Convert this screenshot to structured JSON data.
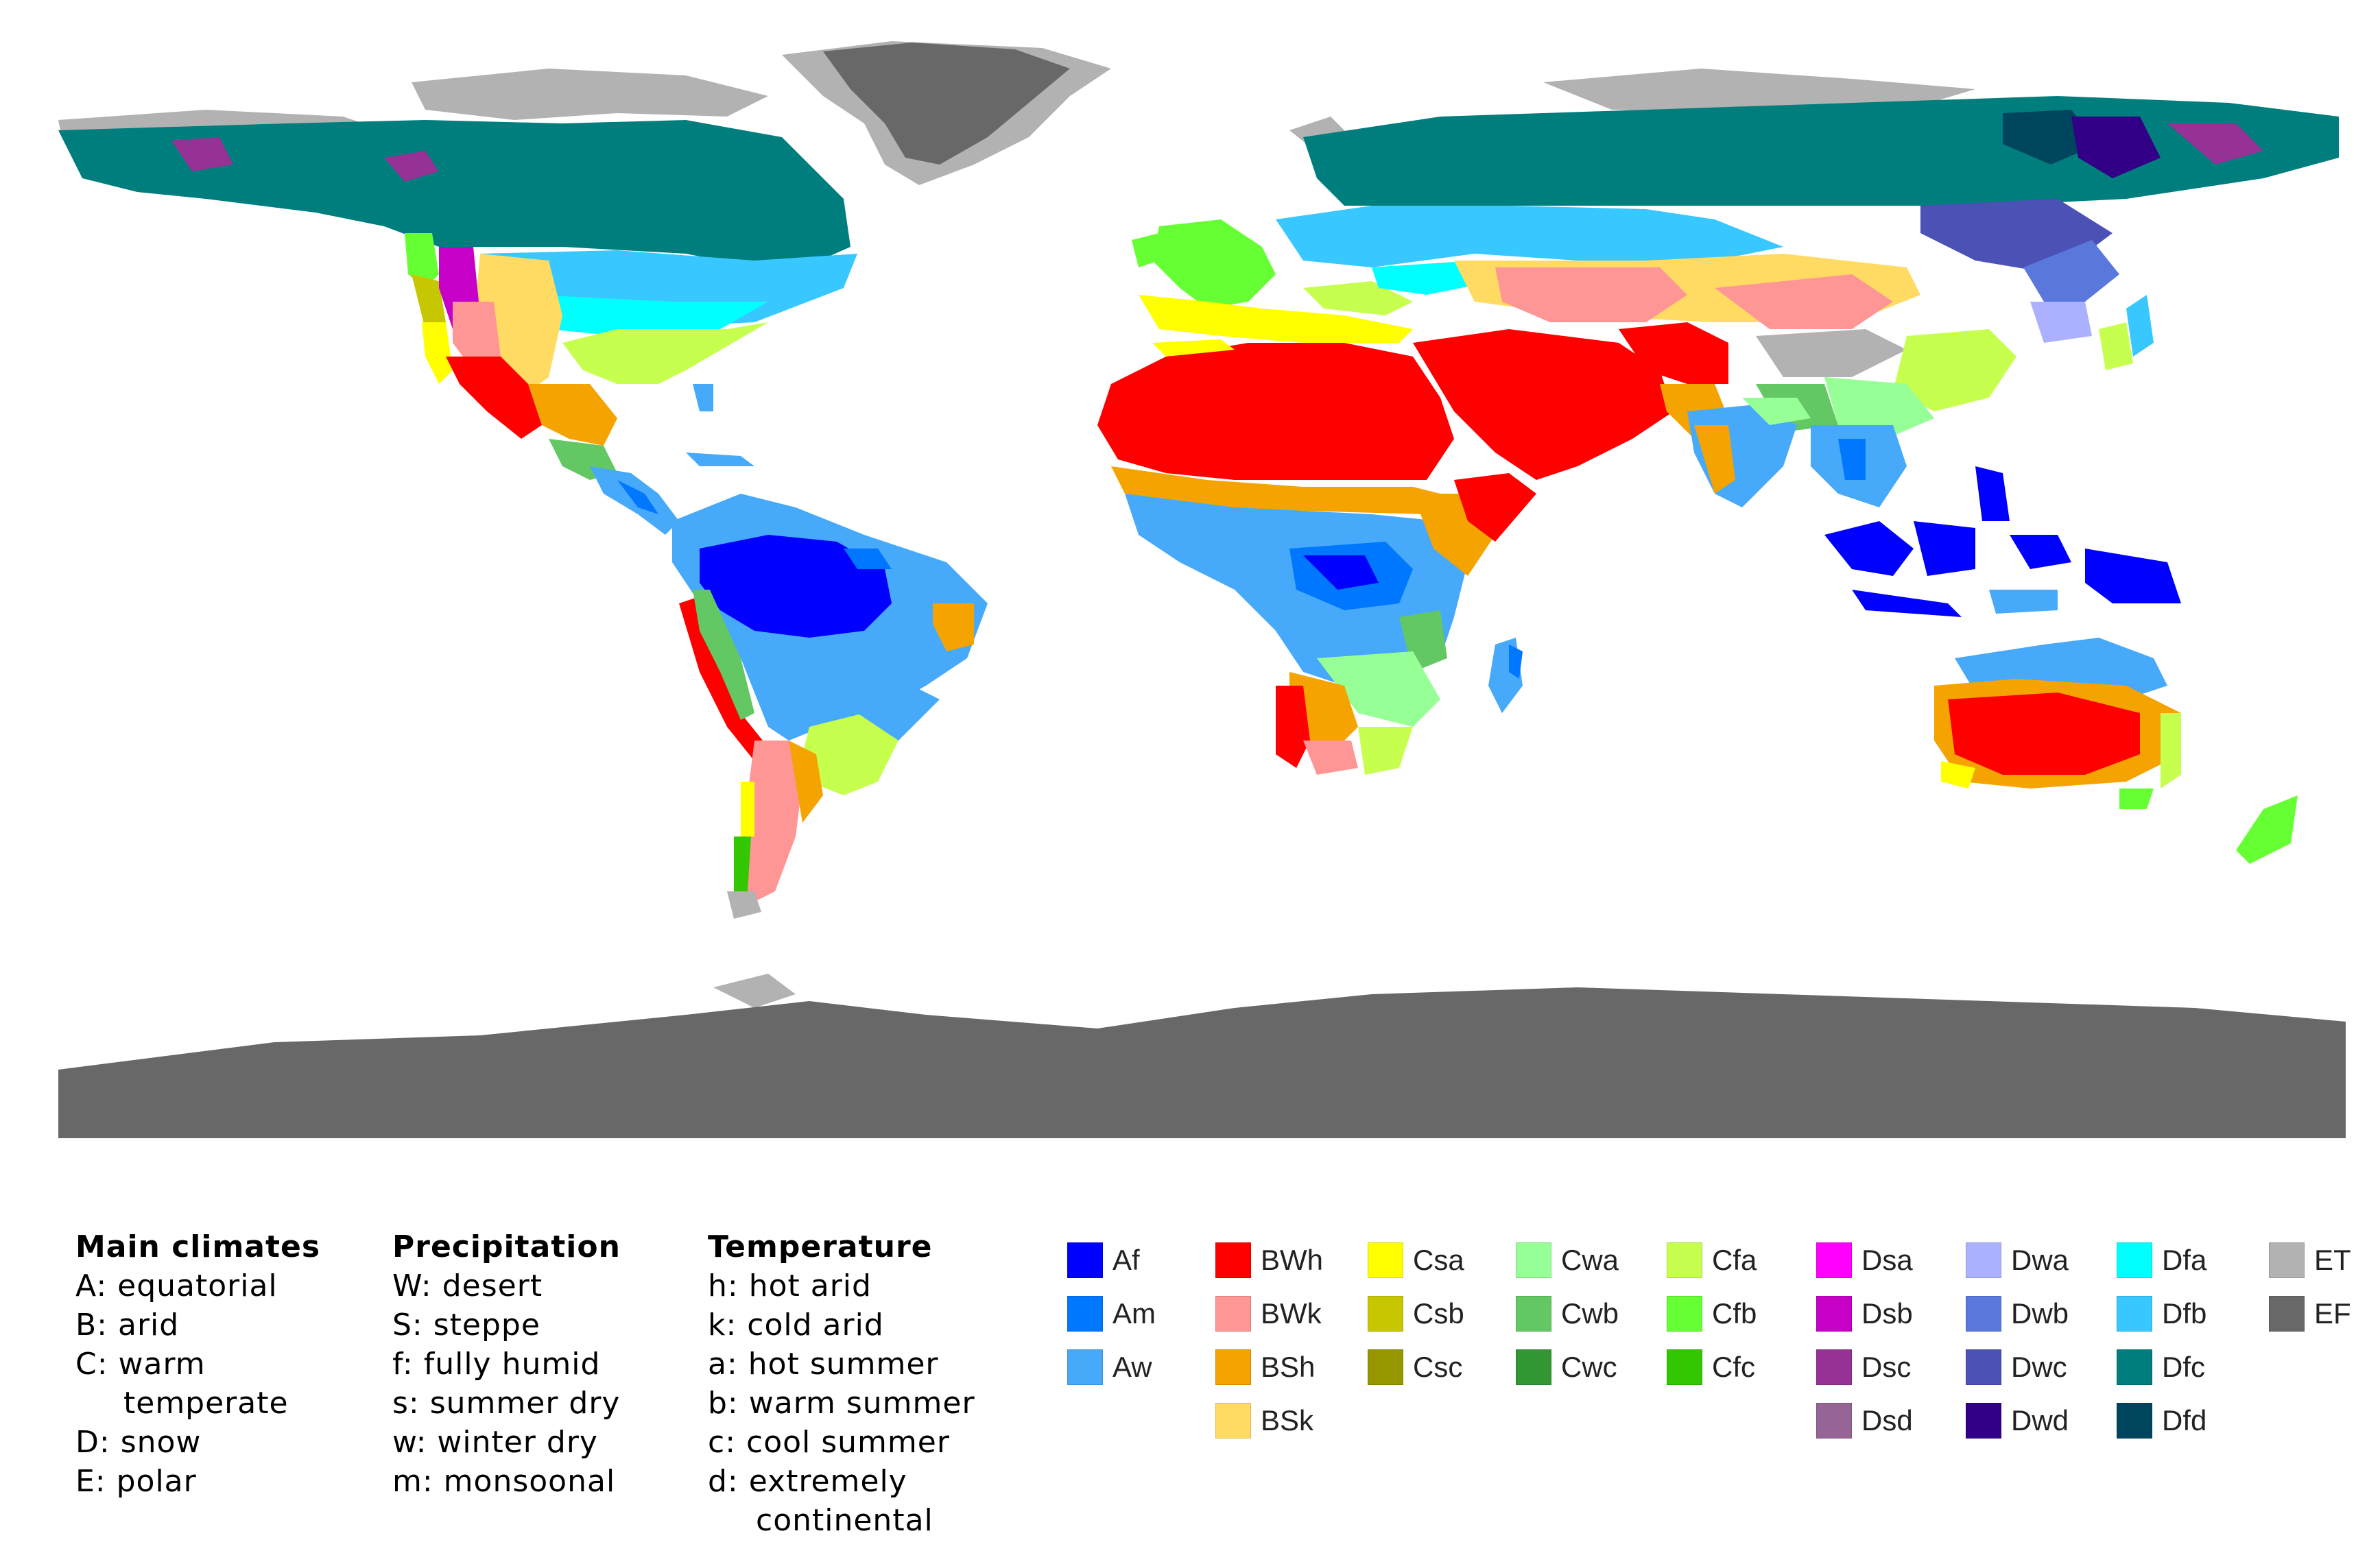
{
  "legend": {
    "main_climates": {
      "heading": "Main climates",
      "entries": [
        "A: equatorial",
        "B: arid",
        "C: warm",
        "temperate",
        "D: snow",
        "E: polar"
      ]
    },
    "precipitation": {
      "heading": "Precipitation",
      "entries": [
        "W: desert",
        "S: steppe",
        "f: fully humid",
        "s: summer dry",
        "w: winter dry",
        "m: monsoonal"
      ]
    },
    "temperature": {
      "heading": "Temperature",
      "entries": [
        "h: hot arid",
        "k: cold arid",
        "a: hot summer",
        "b: warm summer",
        "c: cool summer",
        "d: extremely",
        "continental"
      ]
    }
  },
  "classes": [
    {
      "code": "Af",
      "color": "#0000fe"
    },
    {
      "code": "Am",
      "color": "#0077ff"
    },
    {
      "code": "Aw",
      "color": "#46a9fa"
    },
    {
      "code": "BWh",
      "color": "#fe0000"
    },
    {
      "code": "BWk",
      "color": "#fe9695"
    },
    {
      "code": "BSh",
      "color": "#f5a301"
    },
    {
      "code": "BSk",
      "color": "#ffdb63"
    },
    {
      "code": "Csa",
      "color": "#ffff00"
    },
    {
      "code": "Csb",
      "color": "#c6c700"
    },
    {
      "code": "Csc",
      "color": "#969600"
    },
    {
      "code": "Cwa",
      "color": "#96ff96"
    },
    {
      "code": "Cwb",
      "color": "#63c764"
    },
    {
      "code": "Cwc",
      "color": "#329633"
    },
    {
      "code": "Cfa",
      "color": "#c6ff4e"
    },
    {
      "code": "Cfb",
      "color": "#66ff33"
    },
    {
      "code": "Cfc",
      "color": "#33c701"
    },
    {
      "code": "Dsa",
      "color": "#ff00fe"
    },
    {
      "code": "Dsb",
      "color": "#c600c7"
    },
    {
      "code": "Dsc",
      "color": "#963295"
    },
    {
      "code": "Dsd",
      "color": "#966495"
    },
    {
      "code": "Dwa",
      "color": "#abb1ff"
    },
    {
      "code": "Dwb",
      "color": "#5a77db"
    },
    {
      "code": "Dwc",
      "color": "#4c51b5"
    },
    {
      "code": "Dwd",
      "color": "#320087"
    },
    {
      "code": "Dfa",
      "color": "#00ffff"
    },
    {
      "code": "Dfb",
      "color": "#38c7ff"
    },
    {
      "code": "Dfc",
      "color": "#007e7d"
    },
    {
      "code": "Dfd",
      "color": "#00455e"
    },
    {
      "code": "ET",
      "color": "#b2b2b2"
    },
    {
      "code": "EF",
      "color": "#686868"
    }
  ]
}
